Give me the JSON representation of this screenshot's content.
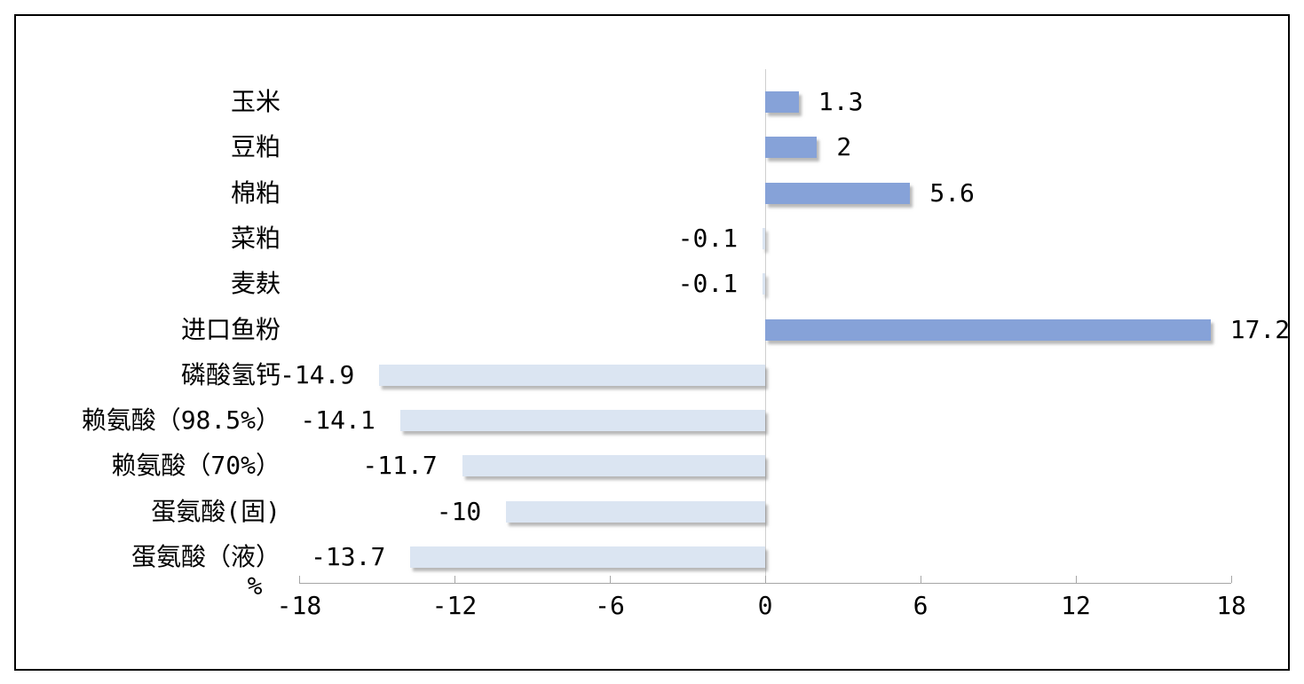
{
  "chart_data": {
    "type": "bar",
    "orientation": "horizontal",
    "title": "",
    "xlabel": "%",
    "ylabel": "",
    "categories": [
      "玉米",
      "豆粕",
      "棉粕",
      "菜粕",
      "麦麸",
      "进口鱼粉",
      "磷酸氢钙",
      "赖氨酸（98.5%）",
      "赖氨酸（70%）",
      "蛋氨酸(固)",
      "蛋氨酸（液）"
    ],
    "values": [
      1.3,
      2,
      5.6,
      -0.1,
      -0.1,
      17.2,
      -14.9,
      -14.1,
      -11.7,
      -10,
      -13.7
    ],
    "value_labels": [
      "1.3",
      "2",
      "5.6",
      "-0.1",
      "-0.1",
      "17.2",
      "-14.9",
      "-14.1",
      "-11.7",
      "-10",
      "-13.7"
    ],
    "xlim": [
      -18,
      18
    ],
    "xticks": [
      -18,
      -12,
      -6,
      0,
      6,
      12,
      18
    ],
    "xtick_labels": [
      "-18",
      "-12",
      "-6",
      "0",
      "6",
      "12",
      "18"
    ],
    "grid": false,
    "legend": false,
    "colors": {
      "positive_bar": "#86a2d8",
      "negative_bar": "#dbe5f2",
      "axis_line": "#a6a6a6",
      "zero_line": "#cfcfcf",
      "text": "#000000",
      "frame_border": "#000000",
      "background": "#ffffff"
    }
  }
}
